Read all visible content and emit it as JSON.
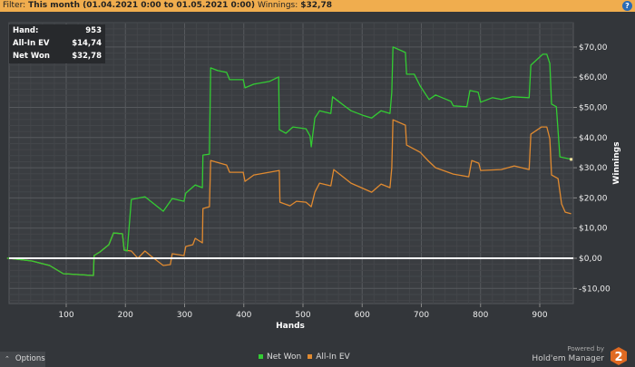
{
  "filter": {
    "label": "Filter:",
    "value": "This month (01.04.2021 0:00 to 01.05.2021 0:00)",
    "winnings_label": "Winnings:",
    "winnings_value": "$32,78",
    "help_icon": "question-circle-icon",
    "help_color": "#2a6bb5"
  },
  "infobox": {
    "rows": [
      {
        "label": "Hand:",
        "value": "953"
      },
      {
        "label": "All-In EV",
        "value": "$14,74"
      },
      {
        "label": "Net Won",
        "value": "$32,78"
      }
    ]
  },
  "options": {
    "label": "Options",
    "icon": "chevron-up-icon"
  },
  "branding": {
    "powered": "Powered by",
    "product": "Hold'em Manager",
    "logo_text": "2",
    "logo_color": "#e06a22"
  },
  "chart_data": {
    "type": "line",
    "xlabel": "Hands",
    "ylabel": "Winnings",
    "xlim": [
      0,
      953
    ],
    "ylim": [
      -15,
      79
    ],
    "x_ticks": [
      100,
      200,
      300,
      400,
      500,
      600,
      700,
      800,
      900
    ],
    "x_tick_labels": [
      "100",
      "200",
      "300",
      "400",
      "500",
      "600",
      "700",
      "800",
      "900"
    ],
    "y_ticks": [
      -10,
      0,
      10,
      20,
      30,
      40,
      50,
      60,
      70
    ],
    "y_tick_labels": [
      "-$10,00",
      "$0,00",
      "$10,00",
      "$20,00",
      "$30,00",
      "$40,00",
      "$50,00",
      "$60,00",
      "$70,00"
    ],
    "grid": true,
    "legend_position": "bottom-center",
    "series": [
      {
        "name": "Net Won",
        "color": "#33cc33",
        "points": [
          [
            0,
            0
          ],
          [
            3,
            0
          ],
          [
            42,
            -0.9
          ],
          [
            72,
            -2.4
          ],
          [
            95,
            -5.1
          ],
          [
            146,
            -5.7
          ],
          [
            147,
            0.9
          ],
          [
            157,
            2.1
          ],
          [
            172,
            4.5
          ],
          [
            180,
            8.4
          ],
          [
            195,
            8.1
          ],
          [
            198,
            2.7
          ],
          [
            203,
            2.4
          ],
          [
            210,
            19.5
          ],
          [
            233,
            20.4
          ],
          [
            264,
            15.6
          ],
          [
            279,
            19.8
          ],
          [
            299,
            18.9
          ],
          [
            302,
            21.6
          ],
          [
            318,
            24.3
          ],
          [
            330,
            23.4
          ],
          [
            331,
            34.2
          ],
          [
            342,
            34.5
          ],
          [
            344,
            63.1
          ],
          [
            356,
            62.2
          ],
          [
            371,
            61.6
          ],
          [
            376,
            59.2
          ],
          [
            399,
            59.2
          ],
          [
            402,
            56.5
          ],
          [
            417,
            57.7
          ],
          [
            443,
            58.6
          ],
          [
            459,
            60.1
          ],
          [
            460,
            42.6
          ],
          [
            471,
            41.4
          ],
          [
            483,
            43.5
          ],
          [
            505,
            42.9
          ],
          [
            512,
            40.5
          ],
          [
            514,
            36.9
          ],
          [
            520,
            46.5
          ],
          [
            528,
            48.9
          ],
          [
            547,
            48.0
          ],
          [
            550,
            53.5
          ],
          [
            560,
            52.0
          ],
          [
            581,
            48.9
          ],
          [
            601,
            47.4
          ],
          [
            616,
            46.5
          ],
          [
            632,
            48.9
          ],
          [
            647,
            48.0
          ],
          [
            650,
            55.0
          ],
          [
            652,
            70.0
          ],
          [
            673,
            68.2
          ],
          [
            675,
            61.0
          ],
          [
            688,
            61.0
          ],
          [
            698,
            57.1
          ],
          [
            713,
            52.6
          ],
          [
            724,
            54.1
          ],
          [
            750,
            52.0
          ],
          [
            754,
            50.5
          ],
          [
            777,
            50.2
          ],
          [
            782,
            55.6
          ],
          [
            796,
            55.0
          ],
          [
            800,
            51.7
          ],
          [
            820,
            53.2
          ],
          [
            835,
            52.6
          ],
          [
            854,
            53.5
          ],
          [
            882,
            53.2
          ],
          [
            885,
            64.0
          ],
          [
            905,
            67.6
          ],
          [
            912,
            67.6
          ],
          [
            917,
            64.6
          ],
          [
            920,
            51.1
          ],
          [
            928,
            50.2
          ],
          [
            934,
            33.6
          ],
          [
            953,
            32.78
          ]
        ]
      },
      {
        "name": "All-In EV",
        "color": "#e08a30",
        "points": [
          [
            0,
            0
          ],
          [
            3,
            0
          ],
          [
            42,
            -0.9
          ],
          [
            72,
            -2.4
          ],
          [
            95,
            -5.1
          ],
          [
            146,
            -5.7
          ],
          [
            147,
            0.9
          ],
          [
            157,
            2.1
          ],
          [
            172,
            4.5
          ],
          [
            180,
            8.4
          ],
          [
            195,
            8.1
          ],
          [
            198,
            2.7
          ],
          [
            210,
            2.4
          ],
          [
            221,
            0
          ],
          [
            233,
            2.4
          ],
          [
            244,
            0.6
          ],
          [
            264,
            -2.4
          ],
          [
            276,
            -2.1
          ],
          [
            279,
            1.5
          ],
          [
            299,
            0.9
          ],
          [
            302,
            3.9
          ],
          [
            314,
            4.5
          ],
          [
            318,
            6.6
          ],
          [
            330,
            5.1
          ],
          [
            331,
            16.5
          ],
          [
            342,
            17.1
          ],
          [
            344,
            32.4
          ],
          [
            371,
            30.9
          ],
          [
            376,
            28.5
          ],
          [
            399,
            28.5
          ],
          [
            402,
            25.5
          ],
          [
            417,
            27.6
          ],
          [
            443,
            28.5
          ],
          [
            460,
            29.1
          ],
          [
            461,
            18.6
          ],
          [
            478,
            17.4
          ],
          [
            489,
            18.9
          ],
          [
            505,
            18.6
          ],
          [
            514,
            17.1
          ],
          [
            520,
            21.9
          ],
          [
            528,
            24.9
          ],
          [
            547,
            24.0
          ],
          [
            552,
            29.4
          ],
          [
            581,
            24.9
          ],
          [
            616,
            21.9
          ],
          [
            632,
            24.6
          ],
          [
            647,
            23.4
          ],
          [
            650,
            30.0
          ],
          [
            652,
            45.9
          ],
          [
            673,
            44.1
          ],
          [
            675,
            37.5
          ],
          [
            698,
            35.1
          ],
          [
            711,
            32.4
          ],
          [
            724,
            30.0
          ],
          [
            754,
            27.9
          ],
          [
            780,
            27.0
          ],
          [
            785,
            32.4
          ],
          [
            797,
            31.5
          ],
          [
            800,
            29.1
          ],
          [
            835,
            29.4
          ],
          [
            857,
            30.6
          ],
          [
            882,
            29.4
          ],
          [
            885,
            41.1
          ],
          [
            903,
            43.5
          ],
          [
            912,
            43.5
          ],
          [
            917,
            39.6
          ],
          [
            920,
            27.6
          ],
          [
            931,
            26.4
          ],
          [
            937,
            18.0
          ],
          [
            943,
            15.3
          ],
          [
            953,
            14.74
          ]
        ]
      }
    ]
  }
}
